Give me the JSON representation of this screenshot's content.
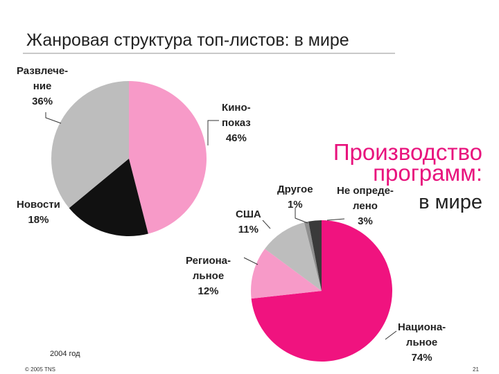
{
  "slide": {
    "title": "Жанровая структура топ-листов: в мире",
    "year": "2004 год",
    "copyright": "© 2005 TNS",
    "page": "21"
  },
  "colors": {
    "pink_light": "#f79ac8",
    "pink_hot": "#f0137f",
    "grey": "#bdbdbd",
    "black": "#111111",
    "dark_grey": "#3a3a3a",
    "mid_grey": "#8f8f8f",
    "accent": "#e8137d"
  },
  "chart_data": [
    {
      "type": "pie",
      "title": "",
      "slices": [
        {
          "label_lines": [
            "Кино-",
            "показ",
            "46%"
          ],
          "value": 46,
          "color": "#f79ac8"
        },
        {
          "label_lines": [
            "Новости",
            "18%"
          ],
          "value": 18,
          "color": "#111111"
        },
        {
          "label_lines": [
            "Развлече-",
            "ние",
            "36%"
          ],
          "value": 36,
          "color": "#bdbdbd"
        }
      ]
    },
    {
      "type": "pie",
      "title_lines": [
        "Производство",
        "программ:",
        "в мире"
      ],
      "slices": [
        {
          "label_lines": [
            "Национа-",
            "льное",
            "74%"
          ],
          "value": 74,
          "color": "#f0137f"
        },
        {
          "label_lines": [
            "Регионa-",
            "льное",
            "12%"
          ],
          "value": 12,
          "color": "#f79ac8"
        },
        {
          "label_lines": [
            "США",
            "11%"
          ],
          "value": 11,
          "color": "#bdbdbd"
        },
        {
          "label_lines": [
            "Другое",
            "1%"
          ],
          "value": 1,
          "color": "#8f8f8f"
        },
        {
          "label_lines": [
            "Не опреде-",
            "лено",
            "3%"
          ],
          "value": 3,
          "color": "#3a3a3a"
        }
      ]
    }
  ]
}
